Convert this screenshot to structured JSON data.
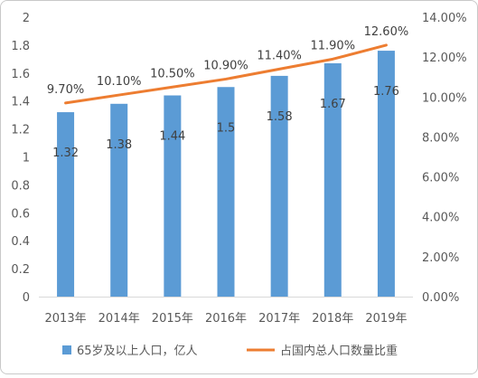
{
  "chart_data": {
    "type": "bar",
    "categories": [
      "2013年",
      "2014年",
      "2015年",
      "2016年",
      "2017年",
      "2018年",
      "2019年"
    ],
    "series": [
      {
        "name": "65岁及以上人口，亿人",
        "type": "bar",
        "axis": "left",
        "color": "#5B9BD5",
        "values": [
          1.32,
          1.38,
          1.44,
          1.5,
          1.58,
          1.67,
          1.76
        ],
        "labels": [
          "1.32",
          "1.38",
          "1.44",
          "1.5",
          "1.58",
          "1.67",
          "1.76"
        ]
      },
      {
        "name": "占国内总人口数量比重",
        "type": "line",
        "axis": "right",
        "color": "#ED7D31",
        "values": [
          9.7,
          10.1,
          10.5,
          10.9,
          11.4,
          11.9,
          12.6
        ],
        "labels": [
          "9.70%",
          "10.10%",
          "10.50%",
          "10.90%",
          "11.40%",
          "11.90%",
          "12.60%"
        ]
      }
    ],
    "y_left": {
      "lim": [
        0,
        2
      ],
      "ticks": [
        "0",
        "0.2",
        "0.4",
        "0.6",
        "0.8",
        "1",
        "1.2",
        "1.4",
        "1.6",
        "1.8",
        "2"
      ]
    },
    "y_right": {
      "lim": [
        0,
        14
      ],
      "ticks": [
        "0.00%",
        "2.00%",
        "4.00%",
        "6.00%",
        "8.00%",
        "10.00%",
        "12.00%",
        "14.00%"
      ]
    },
    "grid": false,
    "legend": "bottom"
  }
}
